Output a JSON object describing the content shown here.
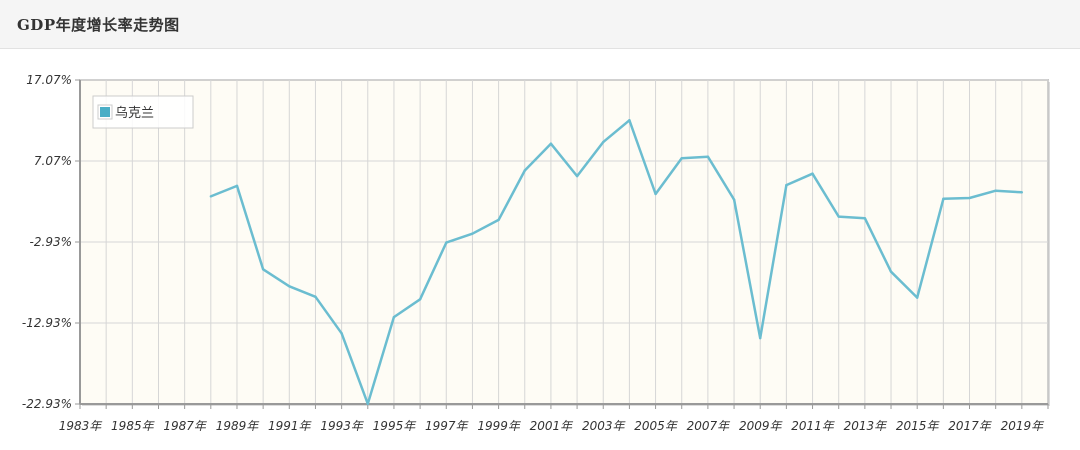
{
  "header": {
    "title": "GDP年度增长率走势图"
  },
  "chart_data": {
    "type": "line",
    "title": "",
    "xlabel": "",
    "ylabel": "",
    "x_range": [
      1983,
      2020
    ],
    "ylim": [
      -22.93,
      17.07
    ],
    "y_ticks": [
      17.07,
      7.07,
      -2.93,
      -12.93,
      -22.93
    ],
    "y_tick_labels": [
      "17.07%",
      "7.07%",
      "-2.93%",
      "-12.93%",
      "-22.93%"
    ],
    "x_ticks": [
      1983,
      1985,
      1987,
      1989,
      1991,
      1993,
      1995,
      1997,
      1999,
      2001,
      2003,
      2005,
      2007,
      2009,
      2011,
      2013,
      2015,
      2017,
      2019
    ],
    "x_tick_labels": [
      "1983年",
      "1985年",
      "1987年",
      "1989年",
      "1991年",
      "1993年",
      "1995年",
      "1997年",
      "1999年",
      "2001年",
      "2003年",
      "2005年",
      "2007年",
      "2009年",
      "2011年",
      "2013年",
      "2015年",
      "2017年",
      "2019年"
    ],
    "grid": true,
    "legend_position": "top-left",
    "colors": {
      "line": "#6bbdd0",
      "plot_bg": "#fefcf5",
      "grid": "#d6d6d6",
      "axis": "#999999"
    },
    "series": [
      {
        "name": "乌克兰",
        "points": [
          [
            1988,
            2.7
          ],
          [
            1989,
            4.0
          ],
          [
            1990,
            -6.3
          ],
          [
            1991,
            -8.4
          ],
          [
            1992,
            -9.7
          ],
          [
            1993,
            -14.2
          ],
          [
            1994,
            -22.9
          ],
          [
            1995,
            -12.2
          ],
          [
            1996,
            -10.0
          ],
          [
            1997,
            -3.0
          ],
          [
            1998,
            -1.9
          ],
          [
            1999,
            -0.2
          ],
          [
            2000,
            5.9
          ],
          [
            2001,
            9.2
          ],
          [
            2002,
            5.2
          ],
          [
            2003,
            9.4
          ],
          [
            2004,
            12.1
          ],
          [
            2005,
            3.0
          ],
          [
            2006,
            7.4
          ],
          [
            2007,
            7.6
          ],
          [
            2008,
            2.3
          ],
          [
            2009,
            -14.8
          ],
          [
            2010,
            4.1
          ],
          [
            2011,
            5.5
          ],
          [
            2012,
            0.2
          ],
          [
            2013,
            0.0
          ],
          [
            2014,
            -6.6
          ],
          [
            2015,
            -9.8
          ],
          [
            2016,
            2.4
          ],
          [
            2017,
            2.5
          ],
          [
            2018,
            3.4
          ],
          [
            2019,
            3.2
          ]
        ]
      }
    ]
  }
}
